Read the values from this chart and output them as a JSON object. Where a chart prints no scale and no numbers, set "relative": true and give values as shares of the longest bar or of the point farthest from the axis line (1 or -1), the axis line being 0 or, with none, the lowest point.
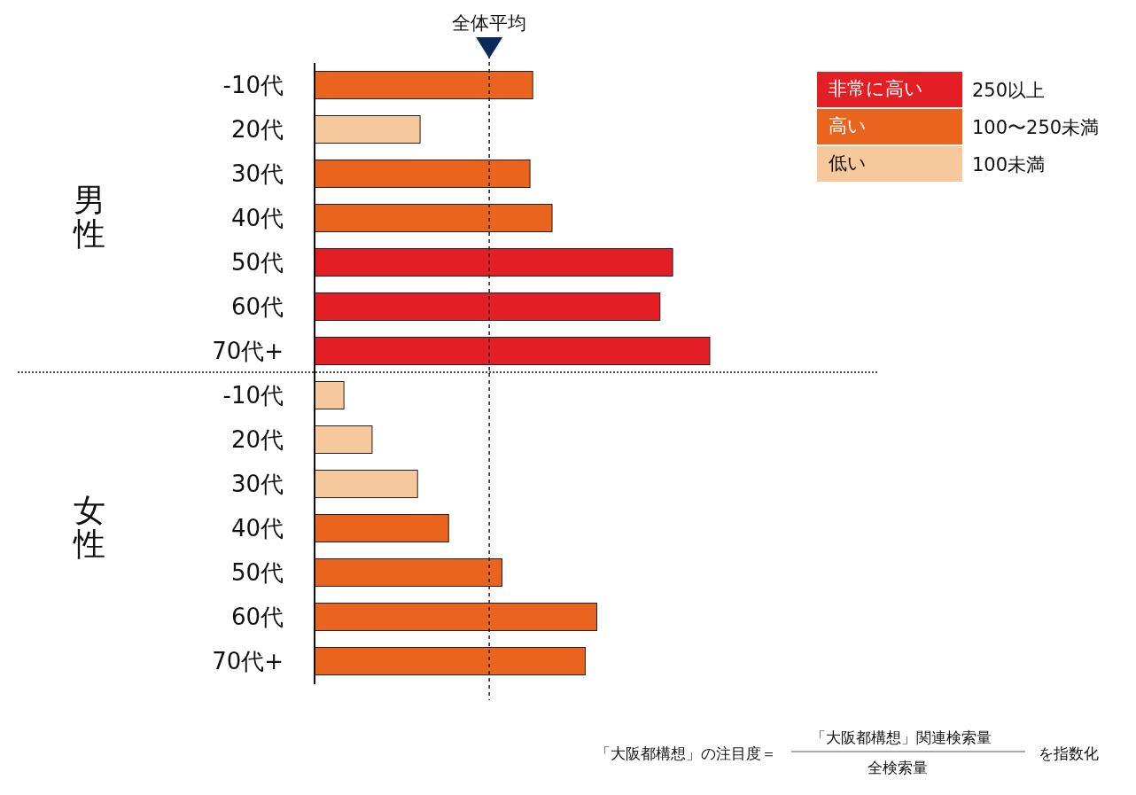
{
  "chart_data": [
    {
      "type": "bar",
      "orientation": "horizontal",
      "relative": true,
      "ylabel": "男性",
      "legend": "top right",
      "categories": [
        "-10代",
        "20代",
        "30代",
        "40代",
        "50代",
        "60代",
        "70代+"
      ],
      "series": [
        {
          "name": "非常に高い",
          "color": "#e31e24",
          "values": [
            null,
            null,
            null,
            null,
            0.906,
            0.874,
            1
          ]
        },
        {
          "name": "高い",
          "color": "#eb641e",
          "values": [
            0.552,
            null,
            0.545,
            0.601,
            null,
            null,
            null
          ]
        },
        {
          "name": "低い",
          "color": "#f7c89b",
          "values": [
            null,
            0.267,
            null,
            null,
            null,
            null,
            null
          ]
        }
      ],
      "ref_lines": [
        {
          "axis": "x",
          "value": 0.442,
          "label": "全体平均",
          "line_style": "dashed",
          "color": "#222222"
        }
      ],
      "annotations": [
        "250以上",
        "100〜250未満",
        "100未満"
      ]
    },
    {
      "type": "bar",
      "orientation": "horizontal",
      "relative": true,
      "ylabel": "女性",
      "categories": [
        "-10代",
        "20代",
        "30代",
        "40代",
        "50代",
        "60代",
        "70代+"
      ],
      "series": [
        {
          "color": "#eb641e",
          "values": [
            null,
            null,
            null,
            0.475,
            0.664,
            1,
            0.959
          ]
        },
        {
          "color": "#f7c89b",
          "values": [
            0.104,
            0.204,
            0.365,
            null,
            null,
            null,
            null
          ]
        }
      ],
      "ref_lines": [
        {
          "axis": "x",
          "value": 0.619,
          "line_style": "dashed",
          "color": "#222222"
        }
      ],
      "annotations": [
        "「大阪都構想」の注目度＝",
        "「大阪都構想」関連検索量",
        "全検索量",
        "を指数化"
      ]
    }
  ]
}
